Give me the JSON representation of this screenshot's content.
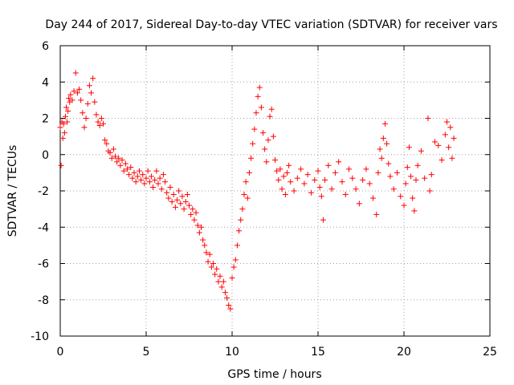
{
  "chart_data": {
    "type": "scatter",
    "title": "Day 244 of 2017, Sidereal Day-to-day VTEC variation (SDTVAR) for receiver vars",
    "xlabel": "GPS time / hours",
    "ylabel": "SDTVAR / TECUs",
    "xlim": [
      0,
      25
    ],
    "ylim": [
      -10,
      6
    ],
    "xticks": [
      0,
      5,
      10,
      15,
      20,
      25
    ],
    "yticks": [
      -10,
      -8,
      -6,
      -4,
      -2,
      0,
      2,
      4,
      6
    ],
    "grid": true,
    "marker": "+",
    "color": "#ff0000",
    "series": [
      {
        "name": "SDTVAR",
        "points": [
          [
            0.0,
            1.5
          ],
          [
            0.05,
            -0.6
          ],
          [
            0.1,
            1.8
          ],
          [
            0.15,
            0.9
          ],
          [
            0.2,
            1.7
          ],
          [
            0.25,
            1.2
          ],
          [
            0.3,
            2.1
          ],
          [
            0.35,
            2.6
          ],
          [
            0.4,
            1.8
          ],
          [
            0.45,
            2.4
          ],
          [
            0.5,
            3.1
          ],
          [
            0.55,
            2.9
          ],
          [
            0.6,
            3.3
          ],
          [
            0.7,
            3.0
          ],
          [
            0.8,
            3.5
          ],
          [
            0.9,
            4.5
          ],
          [
            1.0,
            3.4
          ],
          [
            1.1,
            3.6
          ],
          [
            1.2,
            3.0
          ],
          [
            1.3,
            2.3
          ],
          [
            1.4,
            1.5
          ],
          [
            1.5,
            2.0
          ],
          [
            1.6,
            2.8
          ],
          [
            1.7,
            3.8
          ],
          [
            1.8,
            3.4
          ],
          [
            1.9,
            4.2
          ],
          [
            2.0,
            2.9
          ],
          [
            2.1,
            2.2
          ],
          [
            2.2,
            1.8
          ],
          [
            2.3,
            1.6
          ],
          [
            2.4,
            2.0
          ],
          [
            2.5,
            1.7
          ],
          [
            2.6,
            0.8
          ],
          [
            2.7,
            0.6
          ],
          [
            2.8,
            0.2
          ],
          [
            2.9,
            0.1
          ],
          [
            3.0,
            -0.2
          ],
          [
            3.1,
            0.3
          ],
          [
            3.2,
            -0.1
          ],
          [
            3.3,
            -0.4
          ],
          [
            3.4,
            -0.2
          ],
          [
            3.5,
            -0.6
          ],
          [
            3.6,
            -0.3
          ],
          [
            3.7,
            -0.9
          ],
          [
            3.8,
            -0.5
          ],
          [
            3.9,
            -0.8
          ],
          [
            4.0,
            -1.1
          ],
          [
            4.1,
            -0.7
          ],
          [
            4.2,
            -1.3
          ],
          [
            4.3,
            -1.0
          ],
          [
            4.4,
            -1.5
          ],
          [
            4.5,
            -1.2
          ],
          [
            4.6,
            -0.9
          ],
          [
            4.7,
            -1.4
          ],
          [
            4.8,
            -1.1
          ],
          [
            4.9,
            -1.6
          ],
          [
            5.0,
            -1.3
          ],
          [
            5.1,
            -0.9
          ],
          [
            5.2,
            -1.5
          ],
          [
            5.3,
            -1.2
          ],
          [
            5.4,
            -1.8
          ],
          [
            5.5,
            -1.4
          ],
          [
            5.6,
            -0.9
          ],
          [
            5.7,
            -1.6
          ],
          [
            5.8,
            -1.3
          ],
          [
            5.9,
            -1.9
          ],
          [
            6.0,
            -1.1
          ],
          [
            6.1,
            -1.5
          ],
          [
            6.2,
            -2.1
          ],
          [
            6.3,
            -2.4
          ],
          [
            6.4,
            -1.8
          ],
          [
            6.5,
            -2.6
          ],
          [
            6.6,
            -2.2
          ],
          [
            6.7,
            -2.9
          ],
          [
            6.8,
            -2.5
          ],
          [
            6.9,
            -2.0
          ],
          [
            7.0,
            -2.7
          ],
          [
            7.1,
            -2.3
          ],
          [
            7.2,
            -3.0
          ],
          [
            7.3,
            -2.6
          ],
          [
            7.4,
            -2.2
          ],
          [
            7.5,
            -2.8
          ],
          [
            7.6,
            -3.3
          ],
          [
            7.7,
            -3.0
          ],
          [
            7.8,
            -3.6
          ],
          [
            7.9,
            -3.2
          ],
          [
            8.0,
            -3.9
          ],
          [
            8.1,
            -4.3
          ],
          [
            8.2,
            -4.0
          ],
          [
            8.3,
            -4.7
          ],
          [
            8.4,
            -5.0
          ],
          [
            8.5,
            -5.4
          ],
          [
            8.6,
            -5.9
          ],
          [
            8.7,
            -5.5
          ],
          [
            8.8,
            -6.2
          ],
          [
            8.9,
            -6.0
          ],
          [
            9.0,
            -6.6
          ],
          [
            9.1,
            -6.3
          ],
          [
            9.2,
            -7.0
          ],
          [
            9.3,
            -6.7
          ],
          [
            9.4,
            -7.3
          ],
          [
            9.5,
            -7.0
          ],
          [
            9.6,
            -7.6
          ],
          [
            9.7,
            -7.9
          ],
          [
            9.8,
            -8.3
          ],
          [
            9.9,
            -8.5
          ],
          [
            10.0,
            -6.8
          ],
          [
            10.1,
            -6.2
          ],
          [
            10.2,
            -5.8
          ],
          [
            10.3,
            -5.0
          ],
          [
            10.4,
            -4.2
          ],
          [
            10.5,
            -3.6
          ],
          [
            10.6,
            -3.0
          ],
          [
            10.7,
            -2.2
          ],
          [
            10.8,
            -1.5
          ],
          [
            10.9,
            -2.4
          ],
          [
            11.0,
            -1.0
          ],
          [
            11.1,
            -0.2
          ],
          [
            11.2,
            0.6
          ],
          [
            11.3,
            1.4
          ],
          [
            11.4,
            2.3
          ],
          [
            11.5,
            3.2
          ],
          [
            11.6,
            3.7
          ],
          [
            11.7,
            2.6
          ],
          [
            11.8,
            1.2
          ],
          [
            11.9,
            0.3
          ],
          [
            12.0,
            -0.4
          ],
          [
            12.1,
            0.8
          ],
          [
            12.2,
            2.1
          ],
          [
            12.3,
            2.5
          ],
          [
            12.4,
            1.0
          ],
          [
            12.5,
            -0.3
          ],
          [
            12.6,
            -0.9
          ],
          [
            12.7,
            -1.4
          ],
          [
            12.8,
            -0.8
          ],
          [
            12.9,
            -1.9
          ],
          [
            13.0,
            -1.2
          ],
          [
            13.1,
            -2.2
          ],
          [
            13.2,
            -1.0
          ],
          [
            13.3,
            -0.6
          ],
          [
            13.4,
            -1.5
          ],
          [
            13.6,
            -2.0
          ],
          [
            13.8,
            -1.3
          ],
          [
            14.0,
            -0.8
          ],
          [
            14.2,
            -1.6
          ],
          [
            14.4,
            -1.1
          ],
          [
            14.6,
            -2.1
          ],
          [
            14.8,
            -1.4
          ],
          [
            15.0,
            -0.9
          ],
          [
            15.1,
            -1.8
          ],
          [
            15.2,
            -2.3
          ],
          [
            15.3,
            -3.6
          ],
          [
            15.4,
            -1.4
          ],
          [
            15.6,
            -0.6
          ],
          [
            15.8,
            -1.9
          ],
          [
            16.0,
            -1.0
          ],
          [
            16.2,
            -0.4
          ],
          [
            16.4,
            -1.5
          ],
          [
            16.6,
            -2.2
          ],
          [
            16.8,
            -0.8
          ],
          [
            17.0,
            -1.3
          ],
          [
            17.2,
            -1.9
          ],
          [
            17.4,
            -2.7
          ],
          [
            17.6,
            -1.4
          ],
          [
            17.8,
            -0.8
          ],
          [
            18.0,
            -1.6
          ],
          [
            18.2,
            -2.4
          ],
          [
            18.4,
            -3.3
          ],
          [
            18.5,
            -1.0
          ],
          [
            18.6,
            0.3
          ],
          [
            18.7,
            -0.2
          ],
          [
            18.8,
            0.9
          ],
          [
            18.9,
            1.7
          ],
          [
            19.0,
            0.6
          ],
          [
            19.1,
            -0.5
          ],
          [
            19.2,
            -1.2
          ],
          [
            19.4,
            -1.9
          ],
          [
            19.6,
            -1.0
          ],
          [
            19.8,
            -2.3
          ],
          [
            20.0,
            -2.8
          ],
          [
            20.1,
            -1.6
          ],
          [
            20.2,
            -0.7
          ],
          [
            20.3,
            0.4
          ],
          [
            20.4,
            -1.2
          ],
          [
            20.5,
            -2.4
          ],
          [
            20.6,
            -3.1
          ],
          [
            20.7,
            -1.4
          ],
          [
            20.8,
            -0.6
          ],
          [
            21.0,
            0.2
          ],
          [
            21.2,
            -1.3
          ],
          [
            21.4,
            2.0
          ],
          [
            21.5,
            -2.0
          ],
          [
            21.6,
            -1.1
          ],
          [
            21.8,
            0.7
          ],
          [
            22.0,
            0.5
          ],
          [
            22.2,
            -0.3
          ],
          [
            22.4,
            1.1
          ],
          [
            22.5,
            1.8
          ],
          [
            22.6,
            0.4
          ],
          [
            22.7,
            1.5
          ],
          [
            22.8,
            -0.2
          ],
          [
            22.9,
            0.9
          ]
        ]
      }
    ]
  }
}
